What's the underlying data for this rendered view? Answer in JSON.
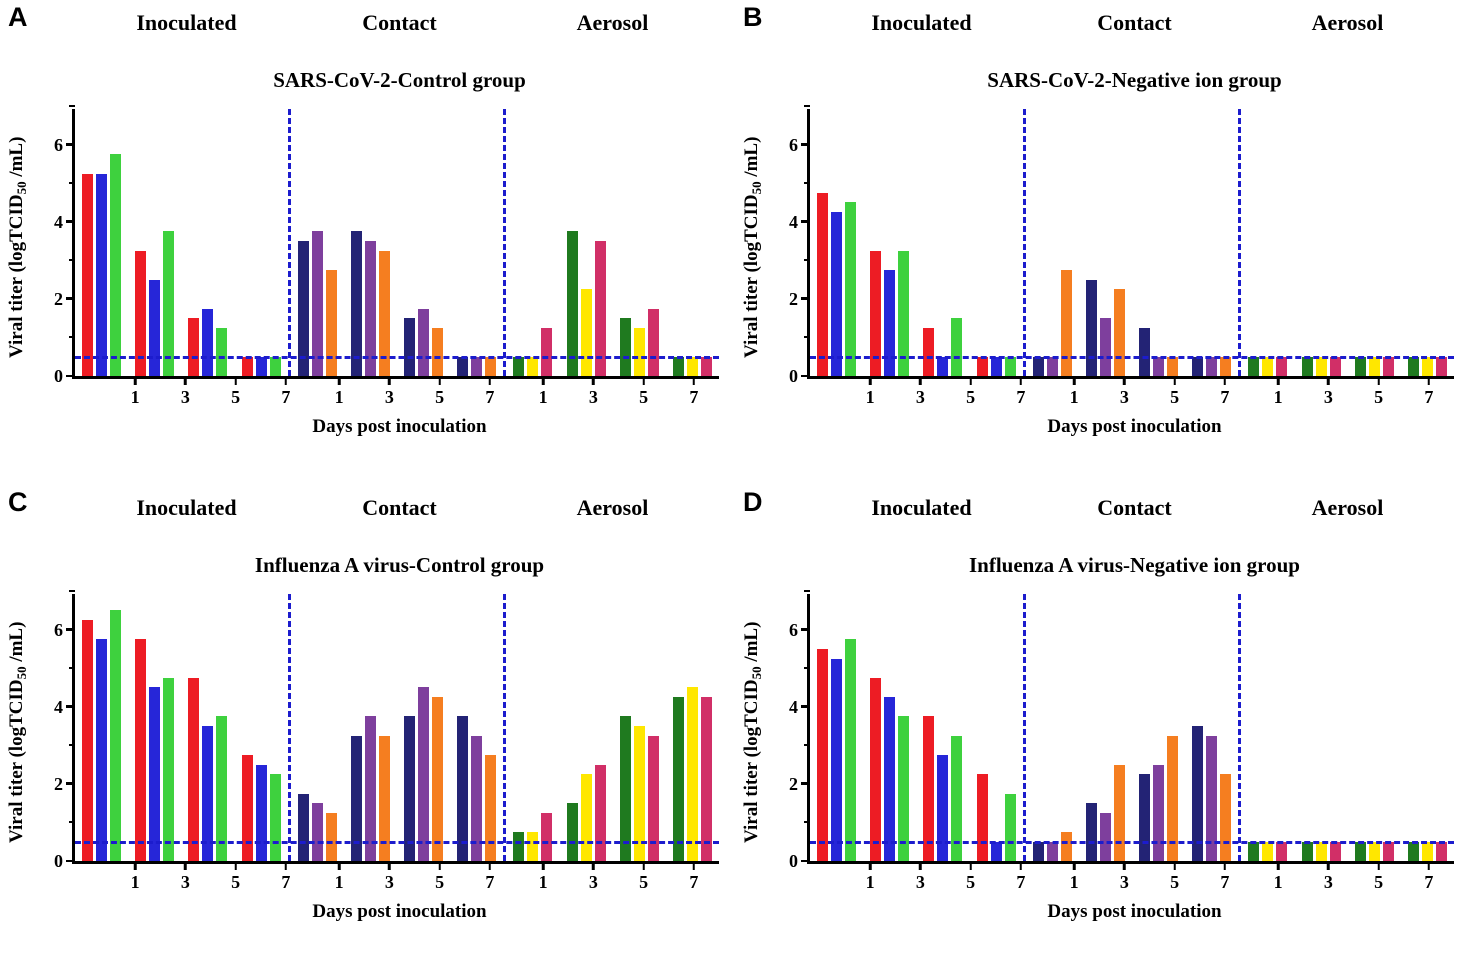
{
  "shared": {
    "ylabel": "Viral titer (logTCID50 /mL)",
    "ylabel_pre": "Viral titer (logTCID",
    "ylabel_sub": "50",
    "ylabel_post": " /mL)",
    "xlabel": "Days post inoculation",
    "days": [
      "1",
      "3",
      "5",
      "7"
    ],
    "ylim": [
      0,
      7
    ],
    "yticks": [
      0,
      2,
      4,
      6
    ],
    "threshold": 0.5,
    "threshold_color": "#1c1ccd",
    "separator_color": "#1c1ccd",
    "axis_color": "#000000",
    "grid": "off",
    "legend": "none"
  },
  "chart_data": [
    {
      "type": "bar",
      "letter": "A",
      "title": "SARS-CoV-2-Control group",
      "sections": [
        {
          "label": "Inoculated",
          "colors": [
            "#ed1c24",
            "#2626d8",
            "#3ed13e"
          ],
          "values": [
            [
              5.25,
              5.25,
              5.75
            ],
            [
              3.25,
              2.5,
              3.75
            ],
            [
              1.5,
              1.75,
              1.25
            ],
            [
              0.5,
              0.5,
              0.5
            ]
          ]
        },
        {
          "label": "Contact",
          "colors": [
            "#232375",
            "#7e3f9d",
            "#f57e20"
          ],
          "values": [
            [
              3.5,
              3.75,
              2.75
            ],
            [
              3.75,
              3.5,
              3.25
            ],
            [
              1.5,
              1.75,
              1.25
            ],
            [
              0.5,
              0.5,
              0.5
            ]
          ]
        },
        {
          "label": "Aerosol",
          "colors": [
            "#1f7a1f",
            "#ffe700",
            "#d12f67"
          ],
          "values": [
            [
              0.5,
              0.5,
              1.25
            ],
            [
              3.75,
              2.25,
              3.5
            ],
            [
              1.5,
              1.25,
              1.75
            ],
            [
              0.5,
              0.5,
              0.5
            ]
          ]
        }
      ]
    },
    {
      "type": "bar",
      "letter": "B",
      "title": "SARS-CoV-2-Negative ion group",
      "sections": [
        {
          "label": "Inoculated",
          "colors": [
            "#ed1c24",
            "#2626d8",
            "#3ed13e"
          ],
          "values": [
            [
              4.75,
              4.25,
              4.5
            ],
            [
              3.25,
              2.75,
              3.25
            ],
            [
              1.25,
              0.5,
              1.5
            ],
            [
              0.5,
              0.5,
              0.5
            ]
          ]
        },
        {
          "label": "Contact",
          "colors": [
            "#232375",
            "#7e3f9d",
            "#f57e20"
          ],
          "values": [
            [
              0.5,
              0.5,
              2.75
            ],
            [
              2.5,
              1.5,
              2.25
            ],
            [
              1.25,
              0.5,
              0.5
            ],
            [
              0.5,
              0.5,
              0.5
            ]
          ]
        },
        {
          "label": "Aerosol",
          "colors": [
            "#1f7a1f",
            "#ffe700",
            "#d12f67"
          ],
          "values": [
            [
              0.5,
              0.5,
              0.5
            ],
            [
              0.5,
              0.5,
              0.5
            ],
            [
              0.5,
              0.5,
              0.5
            ],
            [
              0.5,
              0.5,
              0.5
            ]
          ]
        }
      ]
    },
    {
      "type": "bar",
      "letter": "C",
      "title": "Influenza A virus-Control group",
      "sections": [
        {
          "label": "Inoculated",
          "colors": [
            "#ed1c24",
            "#2626d8",
            "#3ed13e"
          ],
          "values": [
            [
              6.25,
              5.75,
              6.5
            ],
            [
              5.75,
              4.5,
              4.75
            ],
            [
              4.75,
              3.5,
              3.75
            ],
            [
              2.75,
              2.5,
              2.25
            ]
          ]
        },
        {
          "label": "Contact",
          "colors": [
            "#232375",
            "#7e3f9d",
            "#f57e20"
          ],
          "values": [
            [
              1.75,
              1.5,
              1.25
            ],
            [
              3.25,
              3.75,
              3.25
            ],
            [
              3.75,
              4.5,
              4.25
            ],
            [
              3.75,
              3.25,
              2.75
            ]
          ]
        },
        {
          "label": "Aerosol",
          "colors": [
            "#1f7a1f",
            "#ffe700",
            "#d12f67"
          ],
          "values": [
            [
              0.75,
              0.75,
              1.25
            ],
            [
              1.5,
              2.25,
              2.5
            ],
            [
              3.75,
              3.5,
              3.25
            ],
            [
              4.25,
              4.5,
              4.25
            ]
          ]
        }
      ]
    },
    {
      "type": "bar",
      "letter": "D",
      "title": "Influenza A virus-Negative ion group",
      "sections": [
        {
          "label": "Inoculated",
          "colors": [
            "#ed1c24",
            "#2626d8",
            "#3ed13e"
          ],
          "values": [
            [
              5.5,
              5.25,
              5.75
            ],
            [
              4.75,
              4.25,
              3.75
            ],
            [
              3.75,
              2.75,
              3.25
            ],
            [
              2.25,
              0.5,
              1.75
            ]
          ]
        },
        {
          "label": "Contact",
          "colors": [
            "#232375",
            "#7e3f9d",
            "#f57e20"
          ],
          "values": [
            [
              0.5,
              0.5,
              0.75
            ],
            [
              1.5,
              1.25,
              2.5
            ],
            [
              2.25,
              2.5,
              3.25
            ],
            [
              3.5,
              3.25,
              2.25
            ]
          ]
        },
        {
          "label": "Aerosol",
          "colors": [
            "#1f7a1f",
            "#ffe700",
            "#d12f67"
          ],
          "values": [
            [
              0.5,
              0.5,
              0.5
            ],
            [
              0.5,
              0.5,
              0.5
            ],
            [
              0.5,
              0.5,
              0.5
            ],
            [
              0.5,
              0.5,
              0.5
            ]
          ]
        }
      ]
    }
  ]
}
